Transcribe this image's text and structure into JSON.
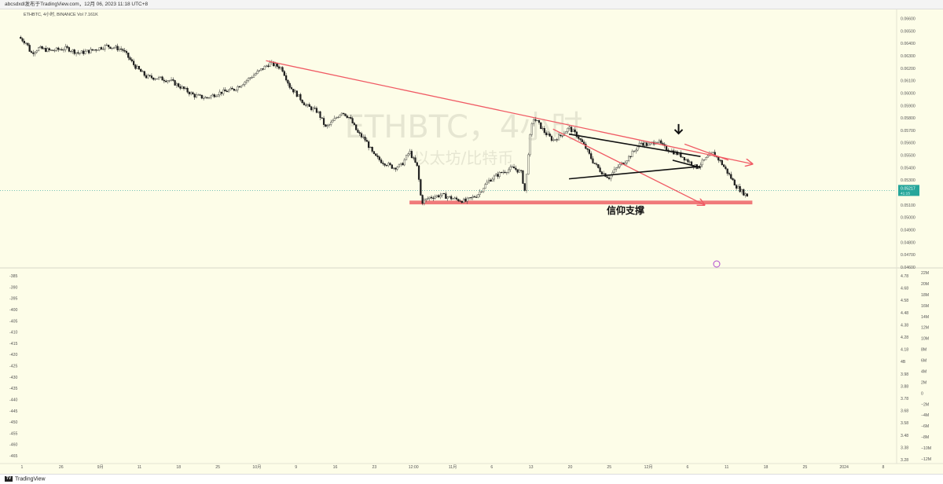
{
  "header": {
    "text": "abcsdxdl发布于TradingView.com，12月 06, 2023 11:18 UTC+8"
  },
  "footer": {
    "brand": "TradingView",
    "brand_badge": "TV"
  },
  "chart_data": {
    "type": "candlestick",
    "title": "ETHBTC，4小时",
    "subtitle": "以太坊/比特币",
    "legend": "ETHBTC, 4小时, BINANCE   Vol 7.161K",
    "current_price": "0.05217",
    "price_countdown": "41:15",
    "annotation": "信仰支撑",
    "support_level": 0.0512,
    "ylim": [
      0.046,
      0.0666
    ],
    "y_ticks": [
      "0.06600",
      "0.06500",
      "0.06400",
      "0.06300",
      "0.06200",
      "0.06100",
      "0.06000",
      "0.05900",
      "0.05800",
      "0.05700",
      "0.05600",
      "0.05500",
      "0.05400",
      "0.05300",
      "0.05200",
      "0.05100",
      "0.05000",
      "0.04900",
      "0.04800",
      "0.04700",
      "0.04600"
    ],
    "x_ticks": [
      "1",
      "26",
      "9月",
      "11",
      "18",
      "25",
      "10月",
      "9",
      "16",
      "23",
      "12:00",
      "11月",
      "6",
      "13",
      "20",
      "25",
      "12月",
      "6",
      "11",
      "18",
      "25",
      "2024",
      "8"
    ],
    "indicator_left_ticks": [
      "-385",
      "-390",
      "-395",
      "-400",
      "-405",
      "-410",
      "-415",
      "-420",
      "-425",
      "-430",
      "-435",
      "-440",
      "-445",
      "-450",
      "-455",
      "-460",
      "-465"
    ],
    "indicator_right_ticks_1": [
      "4.78",
      "4.68",
      "4.58",
      "4.48",
      "4.38",
      "4.28",
      "4.18",
      "4B",
      "3.98",
      "3.88",
      "3.78",
      "3.68",
      "3.58",
      "3.48",
      "3.38",
      "3.28"
    ],
    "indicator_right_ticks_2": [
      "22M",
      "20M",
      "18M",
      "16M",
      "14M",
      "12M",
      "10M",
      "8M",
      "6M",
      "4M",
      "2M",
      "0",
      "−2M",
      "−4M",
      "−6M",
      "−8M",
      "−10M",
      "−12M"
    ],
    "price_path": [
      [
        0,
        0.0645
      ],
      [
        2,
        0.064
      ],
      [
        3,
        0.0632
      ],
      [
        5,
        0.0636
      ],
      [
        8,
        0.0634
      ],
      [
        12,
        0.0636
      ],
      [
        15,
        0.0632
      ],
      [
        18,
        0.0634
      ],
      [
        22,
        0.0638
      ],
      [
        26,
        0.0635
      ],
      [
        29,
        0.0622
      ],
      [
        32,
        0.0613
      ],
      [
        35,
        0.0612
      ],
      [
        38,
        0.061
      ],
      [
        41,
        0.0604
      ],
      [
        44,
        0.0598
      ],
      [
        47,
        0.0596
      ],
      [
        50,
        0.06
      ],
      [
        54,
        0.0603
      ],
      [
        57,
        0.061
      ],
      [
        60,
        0.0617
      ],
      [
        63,
        0.0624
      ],
      [
        66,
        0.062
      ],
      [
        68,
        0.0605
      ],
      [
        70,
        0.0598
      ],
      [
        72,
        0.059
      ],
      [
        75,
        0.0585
      ],
      [
        77,
        0.0572
      ],
      [
        79,
        0.0578
      ],
      [
        81,
        0.0585
      ],
      [
        83,
        0.058
      ],
      [
        85,
        0.0568
      ],
      [
        87,
        0.0562
      ],
      [
        89,
        0.055
      ],
      [
        91,
        0.0545
      ],
      [
        94,
        0.054
      ],
      [
        96,
        0.0542
      ],
      [
        98,
        0.0553
      ],
      [
        100,
        0.054
      ],
      [
        101,
        0.0512
      ],
      [
        103,
        0.0516
      ],
      [
        106,
        0.0518
      ],
      [
        109,
        0.0515
      ],
      [
        112,
        0.0513
      ],
      [
        115,
        0.0518
      ],
      [
        118,
        0.053
      ],
      [
        121,
        0.0536
      ],
      [
        124,
        0.054
      ],
      [
        126,
        0.0536
      ],
      [
        127,
        0.052
      ],
      [
        128,
        0.056
      ],
      [
        129,
        0.058
      ],
      [
        130,
        0.0577
      ],
      [
        132,
        0.0568
      ],
      [
        134,
        0.0562
      ],
      [
        136,
        0.0566
      ],
      [
        138,
        0.0572
      ],
      [
        140,
        0.0566
      ],
      [
        142,
        0.0557
      ],
      [
        144,
        0.0545
      ],
      [
        146,
        0.0537
      ],
      [
        148,
        0.0532
      ],
      [
        150,
        0.054
      ],
      [
        152,
        0.0545
      ],
      [
        154,
        0.0552
      ],
      [
        156,
        0.056
      ],
      [
        158,
        0.0558
      ],
      [
        160,
        0.0562
      ],
      [
        162,
        0.0556
      ],
      [
        164,
        0.0553
      ],
      [
        166,
        0.055
      ],
      [
        168,
        0.0545
      ],
      [
        170,
        0.054
      ],
      [
        172,
        0.0546
      ],
      [
        174,
        0.0552
      ],
      [
        176,
        0.0545
      ],
      [
        178,
        0.0535
      ],
      [
        180,
        0.0525
      ],
      [
        182,
        0.0519
      ],
      [
        183,
        0.0517
      ]
    ],
    "trendlines": [
      {
        "name": "long-downtrend",
        "x1": 62,
        "y1": 0.0626,
        "x2": 184,
        "y2": 0.0543,
        "color": "#f05a64",
        "arrow": true
      },
      {
        "name": "breakdown-arrow",
        "x1": 134,
        "y1": 0.0571,
        "x2": 172,
        "y2": 0.051,
        "color": "#f05a64",
        "arrow": true
      },
      {
        "name": "breakdown-upper",
        "x1": 167,
        "y1": 0.0559,
        "x2": 178,
        "y2": 0.0546,
        "color": "#f05a64",
        "arrow": false
      },
      {
        "name": "wedge-top",
        "x1": 138,
        "y1": 0.0567,
        "x2": 171,
        "y2": 0.0549,
        "color": "#111111",
        "arrow": false
      },
      {
        "name": "wedge-bottom",
        "x1": 138,
        "y1": 0.0531,
        "x2": 171,
        "y2": 0.0541,
        "color": "#111111",
        "arrow": false
      },
      {
        "name": "wedge-small",
        "x1": 164,
        "y1": 0.0546,
        "x2": 171,
        "y2": 0.054,
        "color": "#111111",
        "arrow": false
      }
    ],
    "support_zone": {
      "x1": 98,
      "x2": 184,
      "low": 0.05105,
      "high": 0.05135,
      "color": "#f07a7a"
    },
    "marker_arrow": {
      "x": 165.5,
      "y": 0.057
    },
    "x_max": 220
  }
}
